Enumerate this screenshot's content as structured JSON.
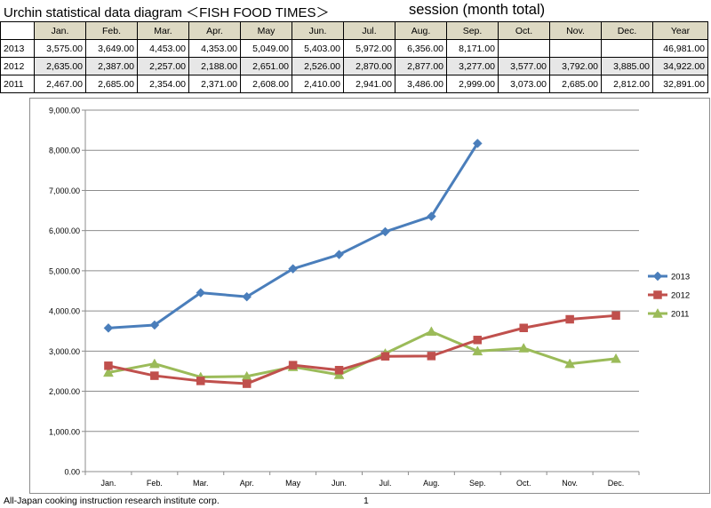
{
  "header": {
    "title": "Urchin statistical data diagram ＜FISH FOOD TIMES＞",
    "subtitle": "session (month total)"
  },
  "table": {
    "columns": [
      "Jan.",
      "Feb.",
      "Mar.",
      "Apr.",
      "May",
      "Jun.",
      "Jul.",
      "Aug.",
      "Sep.",
      "Oct.",
      "Nov.",
      "Dec.",
      "Year"
    ],
    "rows": [
      {
        "year": "2013",
        "cells": [
          "3,575.00",
          "3,649.00",
          "4,453.00",
          "4,353.00",
          "5,049.00",
          "5,403.00",
          "5,972.00",
          "6,356.00",
          "8,171.00",
          "",
          "",
          "",
          "46,981.00"
        ]
      },
      {
        "year": "2012",
        "cells": [
          "2,635.00",
          "2,387.00",
          "2,257.00",
          "2,188.00",
          "2,651.00",
          "2,526.00",
          "2,870.00",
          "2,877.00",
          "3,277.00",
          "3,577.00",
          "3,792.00",
          "3,885.00",
          "34,922.00"
        ]
      },
      {
        "year": "2011",
        "cells": [
          "2,467.00",
          "2,685.00",
          "2,354.00",
          "2,371.00",
          "2,608.00",
          "2,410.00",
          "2,941.00",
          "3,486.00",
          "2,999.00",
          "3,073.00",
          "2,685.00",
          "2,812.00",
          "32,891.00"
        ]
      }
    ]
  },
  "chart_data": {
    "type": "line",
    "categories": [
      "Jan.",
      "Feb.",
      "Mar.",
      "Apr.",
      "May",
      "Jun.",
      "Jul.",
      "Aug.",
      "Sep.",
      "Oct.",
      "Nov.",
      "Dec."
    ],
    "ylim": [
      0,
      9000
    ],
    "yticks": [
      0,
      1000,
      2000,
      3000,
      4000,
      5000,
      6000,
      7000,
      8000,
      9000
    ],
    "ytick_labels": [
      "0.00",
      "1,000.00",
      "2,000.00",
      "3,000.00",
      "4,000.00",
      "5,000.00",
      "6,000.00",
      "7,000.00",
      "8,000.00",
      "9,000.00"
    ],
    "grid": true,
    "legend_position": "right",
    "series": [
      {
        "name": "2013",
        "color": "#4a7ebb",
        "marker": "diamond",
        "values": [
          3575,
          3649,
          4453,
          4353,
          5049,
          5403,
          5972,
          6356,
          8171,
          null,
          null,
          null
        ]
      },
      {
        "name": "2012",
        "color": "#c0504d",
        "marker": "square",
        "values": [
          2635,
          2387,
          2257,
          2188,
          2651,
          2526,
          2870,
          2877,
          3277,
          3577,
          3792,
          3885
        ]
      },
      {
        "name": "2011",
        "color": "#9bbb59",
        "marker": "triangle",
        "values": [
          2467,
          2685,
          2354,
          2371,
          2608,
          2410,
          2941,
          3486,
          2999,
          3073,
          2685,
          2812
        ]
      }
    ]
  },
  "footer": {
    "company": "All-Japan cooking instruction research institute corp.",
    "page": "1"
  }
}
